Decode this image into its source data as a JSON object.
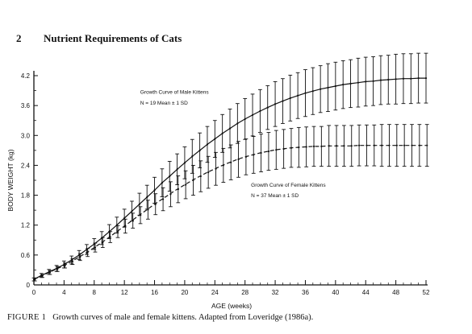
{
  "header": {
    "page_number": "2",
    "title": "Nutrient Requirements of Cats"
  },
  "caption": {
    "label": "FIGURE 1",
    "text": "Growth curves of male and female kittens. Adapted from Loveridge (1986a)."
  },
  "chart_data": {
    "type": "line",
    "title": "",
    "xlabel": "AGE (weeks)",
    "ylabel": "BODY WEIGHT (kg)",
    "xlim": [
      0,
      52
    ],
    "ylim": [
      0,
      4.3
    ],
    "x_ticks": [
      0,
      4,
      8,
      12,
      16,
      20,
      24,
      28,
      32,
      36,
      40,
      44,
      48,
      52
    ],
    "x_tick_labels": [
      "0",
      "4",
      "8",
      "12",
      "16",
      "20",
      "24",
      "28",
      "32",
      "36",
      "40",
      "44",
      "48",
      "52"
    ],
    "y_ticks": [
      0,
      0.6,
      1.2,
      1.8,
      2.4,
      3.0,
      3.6,
      4.2
    ],
    "y_tick_labels": [
      "0",
      "0.6",
      "1.2",
      "1.8",
      "2.4",
      "3.0",
      "3.6",
      "4.2"
    ],
    "grid": false,
    "x": [
      0,
      1,
      2,
      3,
      4,
      5,
      6,
      7,
      8,
      9,
      10,
      11,
      12,
      13,
      14,
      15,
      16,
      17,
      18,
      19,
      20,
      21,
      22,
      23,
      24,
      25,
      26,
      27,
      28,
      29,
      30,
      31,
      32,
      33,
      34,
      35,
      36,
      37,
      38,
      39,
      40,
      41,
      42,
      43,
      44,
      45,
      46,
      47,
      48,
      49,
      50,
      51,
      52
    ],
    "series": [
      {
        "name": "Growth Curve of Male Kittens",
        "style": "solid",
        "values": [
          0.11,
          0.19,
          0.26,
          0.33,
          0.41,
          0.5,
          0.6,
          0.71,
          0.82,
          0.94,
          1.07,
          1.2,
          1.34,
          1.48,
          1.62,
          1.76,
          1.9,
          2.05,
          2.18,
          2.32,
          2.45,
          2.58,
          2.7,
          2.82,
          2.93,
          3.04,
          3.14,
          3.24,
          3.33,
          3.41,
          3.49,
          3.56,
          3.63,
          3.69,
          3.75,
          3.8,
          3.85,
          3.89,
          3.93,
          3.96,
          3.99,
          4.02,
          4.04,
          4.06,
          4.08,
          4.09,
          4.11,
          4.12,
          4.13,
          4.14,
          4.14,
          4.15,
          4.15
        ],
        "sd": [
          0.03,
          0.04,
          0.05,
          0.06,
          0.07,
          0.08,
          0.09,
          0.1,
          0.11,
          0.13,
          0.14,
          0.16,
          0.18,
          0.2,
          0.22,
          0.24,
          0.26,
          0.28,
          0.3,
          0.31,
          0.32,
          0.34,
          0.35,
          0.36,
          0.37,
          0.38,
          0.39,
          0.4,
          0.41,
          0.42,
          0.43,
          0.44,
          0.45,
          0.45,
          0.46,
          0.46,
          0.47,
          0.47,
          0.47,
          0.48,
          0.48,
          0.48,
          0.48,
          0.49,
          0.49,
          0.49,
          0.49,
          0.49,
          0.5,
          0.5,
          0.5,
          0.5,
          0.5
        ],
        "annotation": "N = 19    Mean ± 1 SD"
      },
      {
        "name": "Growth Curve of Female Kittens",
        "style": "dashed",
        "values": [
          0.11,
          0.18,
          0.25,
          0.32,
          0.39,
          0.47,
          0.56,
          0.65,
          0.75,
          0.85,
          0.96,
          1.07,
          1.18,
          1.29,
          1.4,
          1.51,
          1.62,
          1.72,
          1.82,
          1.92,
          2.01,
          2.1,
          2.18,
          2.26,
          2.33,
          2.4,
          2.46,
          2.52,
          2.57,
          2.61,
          2.65,
          2.68,
          2.71,
          2.73,
          2.75,
          2.76,
          2.77,
          2.78,
          2.78,
          2.79,
          2.79,
          2.79,
          2.79,
          2.8,
          2.8,
          2.8,
          2.8,
          2.8,
          2.8,
          2.8,
          2.8,
          2.8,
          2.8
        ],
        "sd": [
          0.03,
          0.03,
          0.04,
          0.05,
          0.05,
          0.06,
          0.07,
          0.08,
          0.09,
          0.1,
          0.11,
          0.12,
          0.14,
          0.15,
          0.17,
          0.19,
          0.21,
          0.23,
          0.25,
          0.27,
          0.28,
          0.3,
          0.31,
          0.32,
          0.33,
          0.34,
          0.35,
          0.36,
          0.36,
          0.37,
          0.38,
          0.38,
          0.39,
          0.39,
          0.39,
          0.4,
          0.4,
          0.4,
          0.4,
          0.41,
          0.41,
          0.41,
          0.41,
          0.41,
          0.41,
          0.41,
          0.42,
          0.42,
          0.42,
          0.42,
          0.42,
          0.42,
          0.42
        ],
        "annotation": "N = 37    Mean ± 1 SD"
      }
    ],
    "annotations": [
      {
        "text": "Growth Curve of Male Kittens",
        "x": 14.1,
        "y": 3.84
      },
      {
        "text": "N = 19    Mean ± 1 SD",
        "x": 14.1,
        "y": 3.62
      },
      {
        "text": "Growth Curve of Female Kittens",
        "x": 28.8,
        "y": 1.97
      },
      {
        "text": "N = 37    Mean ± 1 SD",
        "x": 28.8,
        "y": 1.76
      }
    ]
  }
}
